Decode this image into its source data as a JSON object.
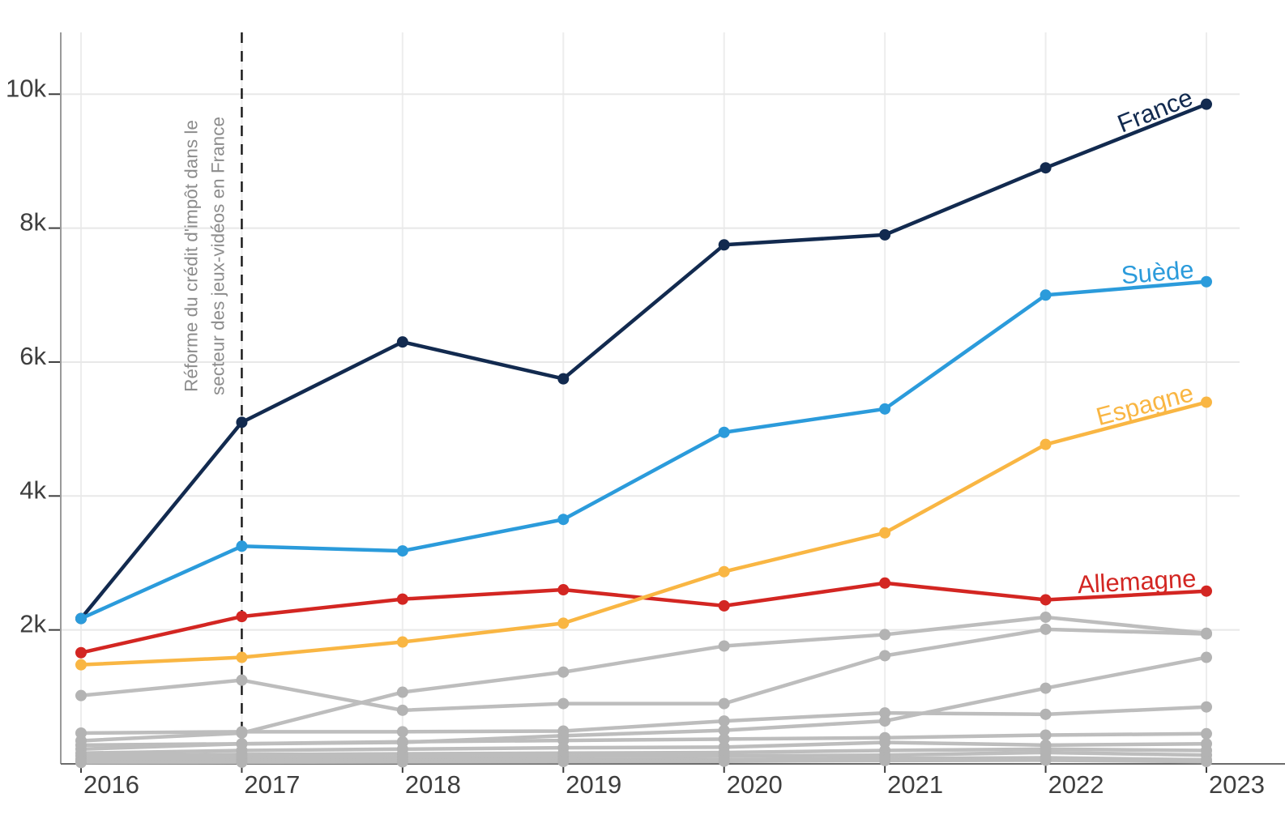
{
  "chart_data": {
    "type": "line",
    "title": "",
    "xlabel": "",
    "ylabel": "",
    "x": [
      2016,
      2017,
      2018,
      2019,
      2020,
      2021,
      2022,
      2023
    ],
    "x_tick_labels": [
      "2016",
      "2017",
      "2018",
      "2019",
      "2020",
      "2021",
      "2022",
      "2023"
    ],
    "y_tick_labels": [
      "2k",
      "4k",
      "6k",
      "8k",
      "10k"
    ],
    "y_tick_values": [
      2000,
      4000,
      6000,
      8000,
      10000
    ],
    "ylim": [
      0,
      11200
    ],
    "grid": true,
    "legend_position": "line-end-labels",
    "series": [
      {
        "name": "France",
        "color": "#122a4f",
        "values": [
          2170,
          5100,
          6300,
          5750,
          7750,
          7900,
          8900,
          9850
        ]
      },
      {
        "name": "Suède",
        "color": "#2b9bdb",
        "values": [
          2170,
          3250,
          3180,
          3650,
          4950,
          5300,
          7000,
          7200
        ]
      },
      {
        "name": "Espagne",
        "color": "#f9b643",
        "values": [
          1480,
          1590,
          1820,
          2100,
          2870,
          3450,
          4770,
          5400
        ]
      },
      {
        "name": "Allemagne",
        "color": "#d32622",
        "values": [
          1660,
          2200,
          2460,
          2600,
          2360,
          2700,
          2450,
          2580
        ]
      }
    ],
    "other_series_color": "#bdbdbd",
    "other_series": [
      {
        "name": "other-1",
        "values": [
          1020,
          1250,
          800,
          900,
          900,
          1615,
          2010,
          1940
        ]
      },
      {
        "name": "other-2",
        "values": [
          345,
          460,
          1070,
          1370,
          1760,
          1930,
          2190,
          1950
        ]
      },
      {
        "name": "other-3",
        "values": [
          460,
          480,
          480,
          490,
          640,
          760,
          740,
          850
        ]
      },
      {
        "name": "other-4",
        "values": [
          280,
          300,
          320,
          420,
          500,
          640,
          1130,
          1590
        ]
      },
      {
        "name": "other-5",
        "values": [
          220,
          300,
          330,
          350,
          370,
          390,
          430,
          450
        ]
      },
      {
        "name": "other-6",
        "values": [
          160,
          200,
          220,
          240,
          250,
          320,
          280,
          300
        ]
      },
      {
        "name": "other-7",
        "values": [
          120,
          140,
          150,
          160,
          170,
          200,
          220,
          200
        ]
      },
      {
        "name": "other-8",
        "values": [
          70,
          90,
          100,
          110,
          120,
          130,
          170,
          130
        ]
      },
      {
        "name": "other-9",
        "values": [
          40,
          50,
          55,
          60,
          65,
          80,
          90,
          60
        ]
      },
      {
        "name": "other-10",
        "values": [
          20,
          25,
          30,
          35,
          40,
          50,
          55,
          35
        ]
      }
    ],
    "annotation": {
      "text_line1": "Réforme du crédit d'impôt dans le",
      "text_line2": "secteur des jeux-vidéos en France",
      "x": 2017,
      "line_style": "dashed-vertical",
      "line_color": "#1c1c1c",
      "text_color": "#8c8c8c"
    },
    "colors": {
      "axis_text": "#3e3e3e",
      "grid_h": "#e8e8e8",
      "grid_v": "#ededed",
      "axis_line_y": "#9a9a9a",
      "axis_line_x": "#6b6b6b"
    }
  }
}
